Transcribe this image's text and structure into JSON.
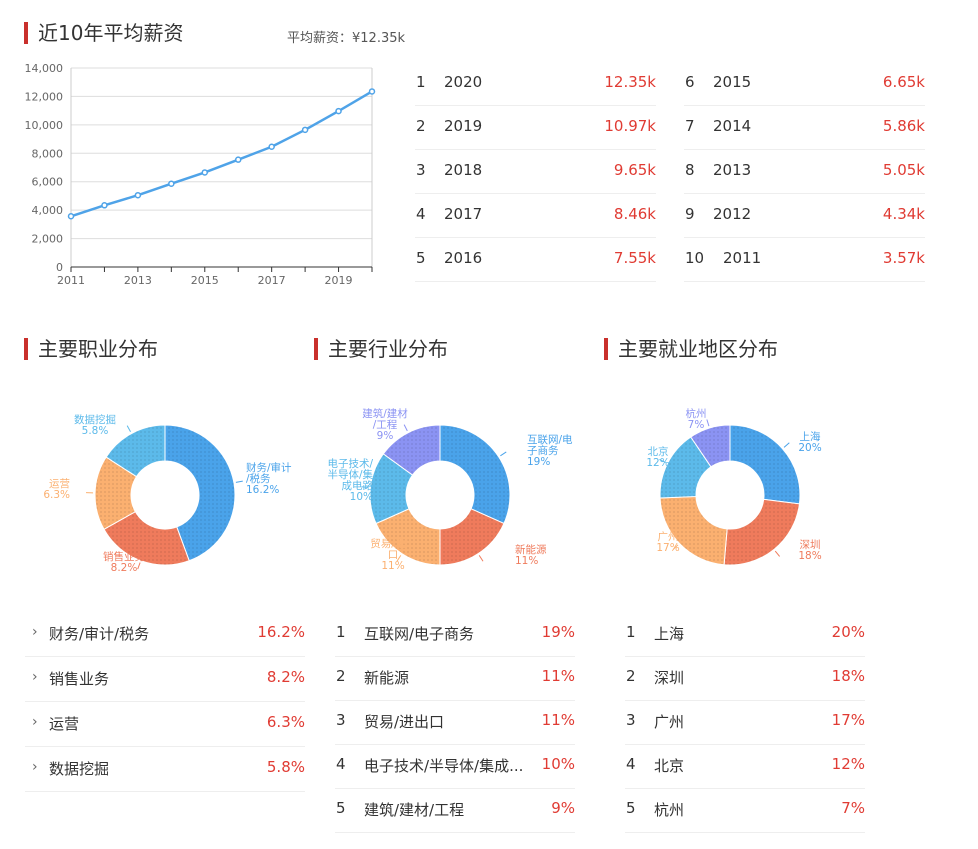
{
  "salary": {
    "title": "近10年平均薪资",
    "average": "平均薪资：¥12.35k",
    "ranks": [
      {
        "rank": "1",
        "year": "2020",
        "value": "12.35k"
      },
      {
        "rank": "2",
        "year": "2019",
        "value": "10.97k"
      },
      {
        "rank": "3",
        "year": "2018",
        "value": "9.65k"
      },
      {
        "rank": "4",
        "year": "2017",
        "value": "8.46k"
      },
      {
        "rank": "5",
        "year": "2016",
        "value": "7.55k"
      },
      {
        "rank": "6",
        "year": "2015",
        "value": "6.65k"
      },
      {
        "rank": "7",
        "year": "2014",
        "value": "5.86k"
      },
      {
        "rank": "8",
        "year": "2013",
        "value": "5.05k"
      },
      {
        "rank": "9",
        "year": "2012",
        "value": "4.34k"
      },
      {
        "rank": "10",
        "year": "2011",
        "value": "3.57k"
      }
    ]
  },
  "occupation": {
    "title": "主要职业分布",
    "items": [
      {
        "label": "财务/审计/税务",
        "value": "16.2%"
      },
      {
        "label": "销售业务",
        "value": "8.2%"
      },
      {
        "label": "运营",
        "value": "6.3%"
      },
      {
        "label": "数据挖掘",
        "value": "5.8%"
      }
    ]
  },
  "industry": {
    "title": "主要行业分布",
    "items": [
      {
        "rank": "1",
        "label": "互联网/电子商务",
        "value": "19%"
      },
      {
        "rank": "2",
        "label": "新能源",
        "value": "11%"
      },
      {
        "rank": "3",
        "label": "贸易/进出口",
        "value": "11%"
      },
      {
        "rank": "4",
        "label": "电子技术/半导体/集成...",
        "value": "10%"
      },
      {
        "rank": "5",
        "label": "建筑/建材/工程",
        "value": "9%"
      }
    ]
  },
  "region": {
    "title": "主要就业地区分布",
    "items": [
      {
        "rank": "1",
        "label": "上海",
        "value": "20%"
      },
      {
        "rank": "2",
        "label": "深圳",
        "value": "18%"
      },
      {
        "rank": "3",
        "label": "广州",
        "value": "17%"
      },
      {
        "rank": "4",
        "label": "北京",
        "value": "12%"
      },
      {
        "rank": "5",
        "label": "杭州",
        "value": "7%"
      }
    ]
  },
  "colors": {
    "accent": "#c9302c",
    "red": "#e03b33",
    "line": "#4fa3e8"
  },
  "chart_data": [
    {
      "type": "line",
      "x": [
        2011,
        2012,
        2013,
        2014,
        2015,
        2016,
        2017,
        2018,
        2019,
        2020
      ],
      "values": [
        3570,
        4340,
        5050,
        5860,
        6650,
        7550,
        8460,
        9650,
        10970,
        12350
      ],
      "xticks": [
        "2011",
        "2013",
        "2015",
        "2017",
        "2019"
      ],
      "yticks": [
        "0",
        "2,000",
        "4,000",
        "6,000",
        "8,000",
        "10,000",
        "12,000",
        "14,000"
      ],
      "ylim": [
        0,
        14000
      ],
      "grid": true
    },
    {
      "type": "pie",
      "labels": [
        "财务/审计/税务",
        "销售业务",
        "运营",
        "数据挖掘"
      ],
      "values": [
        16.2,
        8.2,
        6.3,
        5.8
      ],
      "colors": [
        "#4aa3ea",
        "#ef7b5c",
        "#fbb070",
        "#5cbaea"
      ],
      "label_lines": [
        [
          "财务/审计",
          "/税务",
          "16.2%"
        ],
        [
          "销售业务",
          "8.2%"
        ],
        [
          "运营",
          "6.3%"
        ],
        [
          "数据挖掘",
          "5.8%"
        ]
      ]
    },
    {
      "type": "pie",
      "labels": [
        "互联网/电子商务",
        "新能源",
        "贸易/进出口",
        "电子技术/半导体/集成电路",
        "建筑/建材/工程"
      ],
      "values": [
        19,
        11,
        11,
        10,
        9
      ],
      "colors": [
        "#4aa3ea",
        "#ef7b5c",
        "#fbb070",
        "#5cbaea",
        "#8b93f3"
      ],
      "label_lines": [
        [
          "互联网/电",
          "子商务",
          "19%"
        ],
        [
          "新能源",
          "11%"
        ],
        [
          "贸易/进出",
          "口",
          "11%"
        ],
        [
          "电子技术/",
          "半导体/集",
          "成电路",
          "10%"
        ],
        [
          "建筑/建材",
          "/工程",
          "9%"
        ]
      ]
    },
    {
      "type": "pie",
      "labels": [
        "上海",
        "深圳",
        "广州",
        "北京",
        "杭州"
      ],
      "values": [
        20,
        18,
        17,
        12,
        7
      ],
      "colors": [
        "#4aa3ea",
        "#ef7b5c",
        "#fbb070",
        "#5cbaea",
        "#8b93f3"
      ],
      "label_lines": [
        [
          "上海",
          "20%"
        ],
        [
          "深圳",
          "18%"
        ],
        [
          "广州",
          "17%"
        ],
        [
          "北京",
          "12%"
        ],
        [
          "杭州",
          "7%"
        ]
      ]
    }
  ]
}
